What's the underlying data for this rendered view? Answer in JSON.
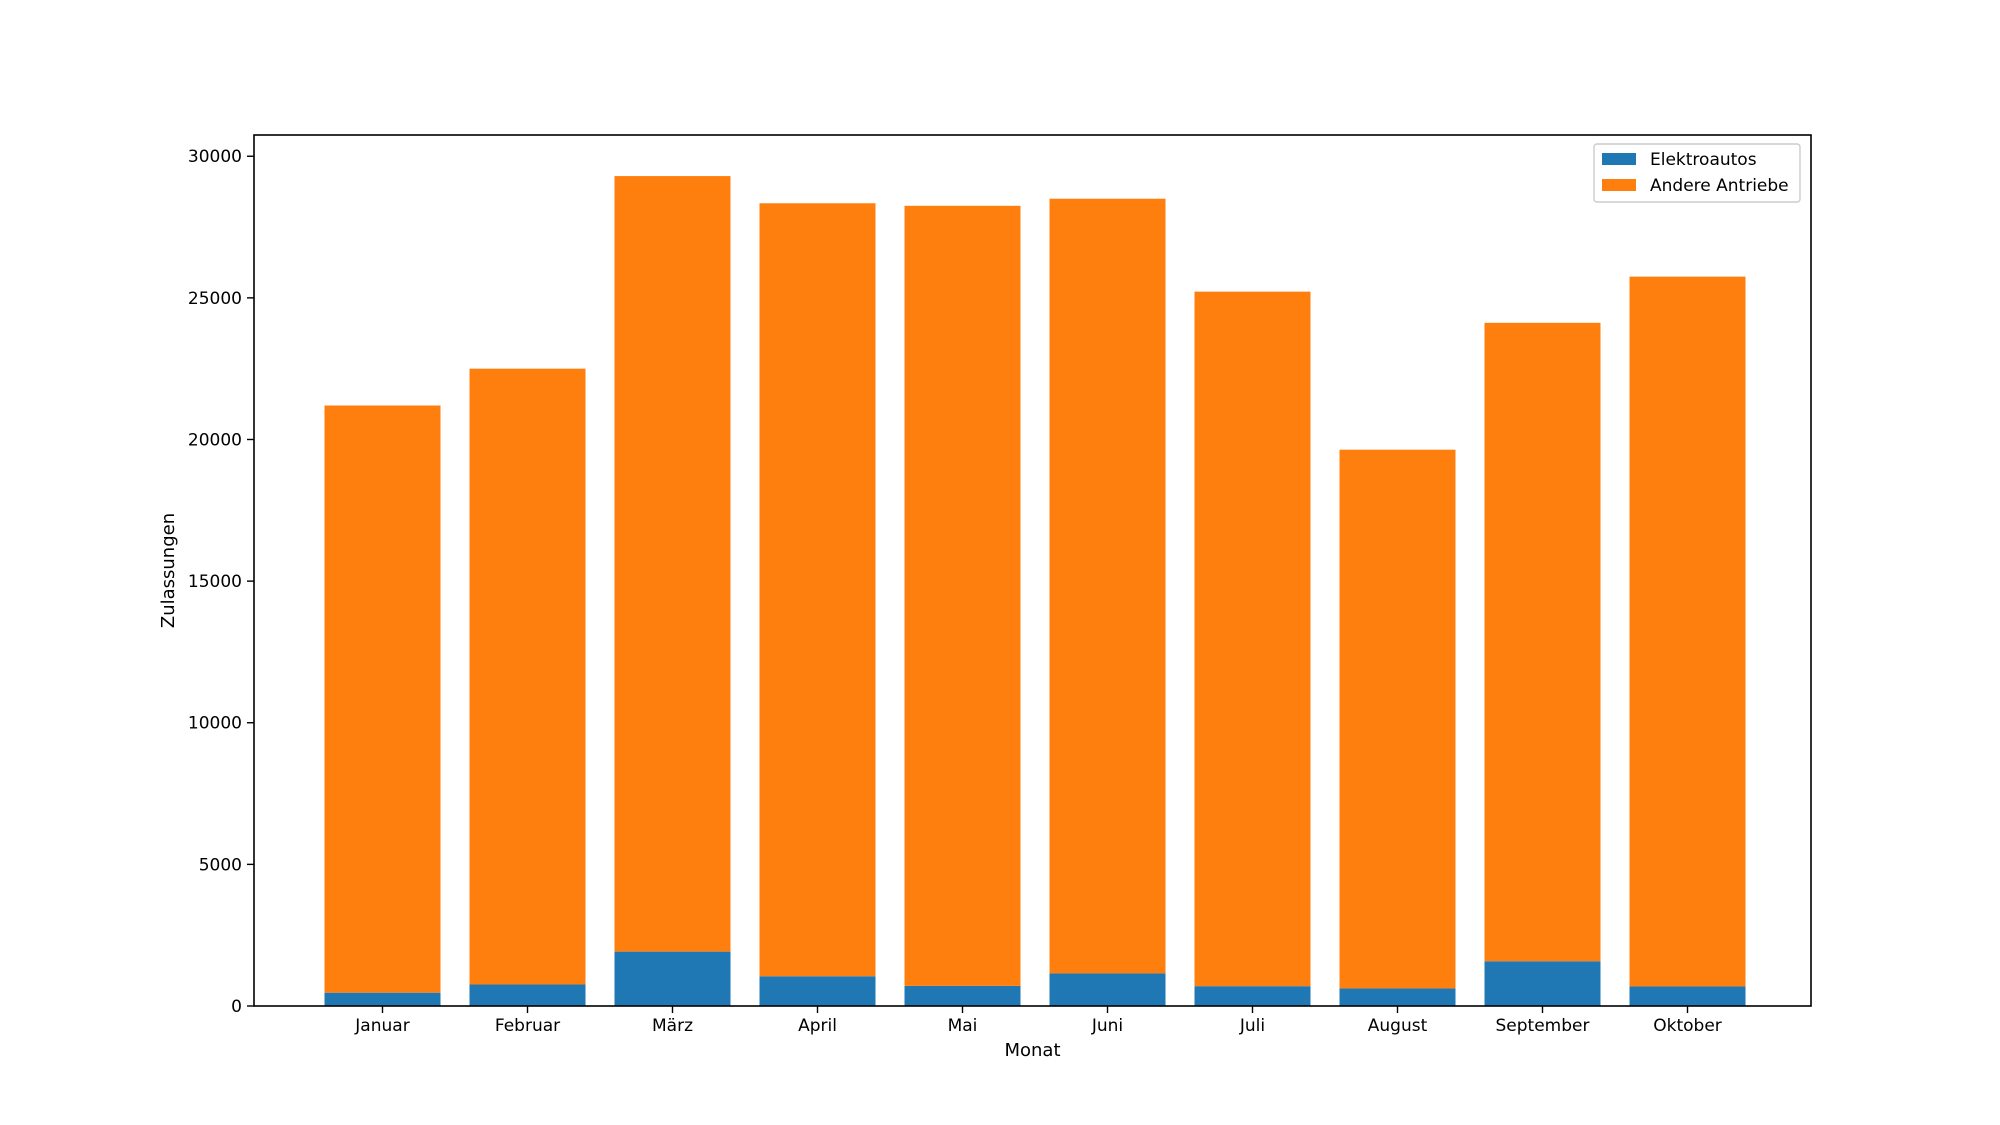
{
  "chart_data": {
    "type": "bar",
    "stacked": true,
    "title": "",
    "xlabel": "Monat",
    "ylabel": "Zulassungen",
    "categories": [
      "Januar",
      "Februar",
      "März",
      "April",
      "Mai",
      "Juni",
      "Juli",
      "August",
      "September",
      "Oktober"
    ],
    "series": [
      {
        "name": "Elektroautos",
        "color": "#1f77b4",
        "values": [
          470,
          760,
          1920,
          1050,
          710,
          1150,
          700,
          620,
          1580,
          690
        ]
      },
      {
        "name": "Andere Antriebe",
        "color": "#ff7f0e",
        "values": [
          20730,
          21740,
          27380,
          27290,
          27540,
          27350,
          24520,
          19020,
          22540,
          25060
        ]
      }
    ],
    "ylim": [
      0,
      30750
    ],
    "yticks": [
      0,
      5000,
      10000,
      15000,
      20000,
      25000,
      30000
    ],
    "grid": false,
    "legend_position": "top-right"
  }
}
